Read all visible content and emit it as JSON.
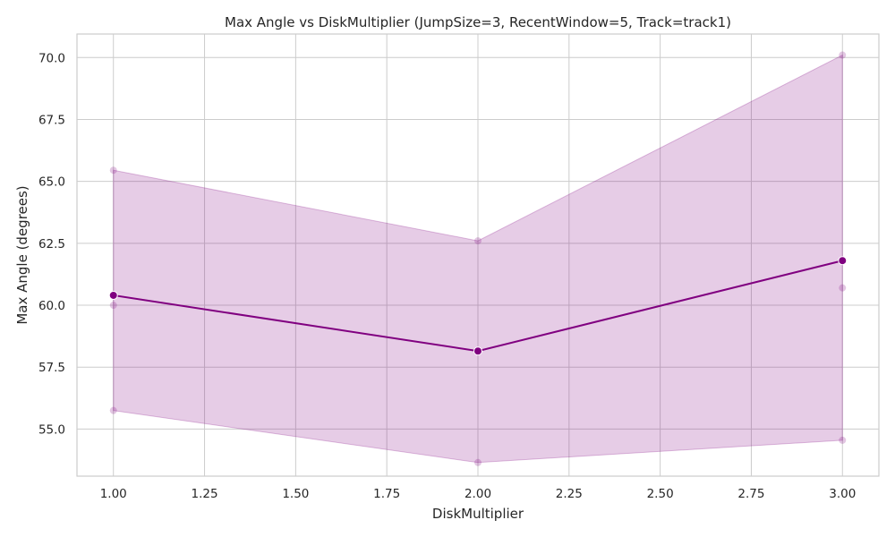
{
  "chart_data": {
    "type": "line",
    "title": "Max Angle vs DiskMultiplier (JumpSize=3, RecentWindow=5, Track=track1)",
    "xlabel": "DiskMultiplier",
    "ylabel": "Max Angle (degrees)",
    "xlim": [
      0.9,
      3.1
    ],
    "ylim": [
      53.1,
      70.95
    ],
    "x_ticks": [
      1.0,
      1.25,
      1.5,
      1.75,
      2.0,
      2.25,
      2.5,
      2.75,
      3.0
    ],
    "x_tick_labels": [
      "1.00",
      "1.25",
      "1.50",
      "1.75",
      "2.00",
      "2.25",
      "2.50",
      "2.75",
      "3.00"
    ],
    "y_ticks": [
      55.0,
      57.5,
      60.0,
      62.5,
      65.0,
      67.5,
      70.0
    ],
    "y_tick_labels": [
      "55.0",
      "57.5",
      "60.0",
      "62.5",
      "65.0",
      "67.5",
      "70.0"
    ],
    "grid": true,
    "colors": {
      "line": "#800080",
      "band": "#800080",
      "scatter": "#800080"
    },
    "mean_series": {
      "x": [
        1.0,
        2.0,
        3.0
      ],
      "y": [
        60.4,
        58.15,
        61.8
      ]
    },
    "band": {
      "x": [
        1.0,
        2.0,
        3.0
      ],
      "lower": [
        55.75,
        53.65,
        54.55
      ],
      "upper": [
        65.45,
        62.6,
        70.1
      ]
    },
    "scatter_points": [
      {
        "x": 1.0,
        "y": 65.45
      },
      {
        "x": 1.0,
        "y": 60.0
      },
      {
        "x": 1.0,
        "y": 55.75
      },
      {
        "x": 2.0,
        "y": 62.6
      },
      {
        "x": 2.0,
        "y": 53.65
      },
      {
        "x": 3.0,
        "y": 70.1
      },
      {
        "x": 3.0,
        "y": 60.7
      },
      {
        "x": 3.0,
        "y": 54.55
      }
    ]
  }
}
